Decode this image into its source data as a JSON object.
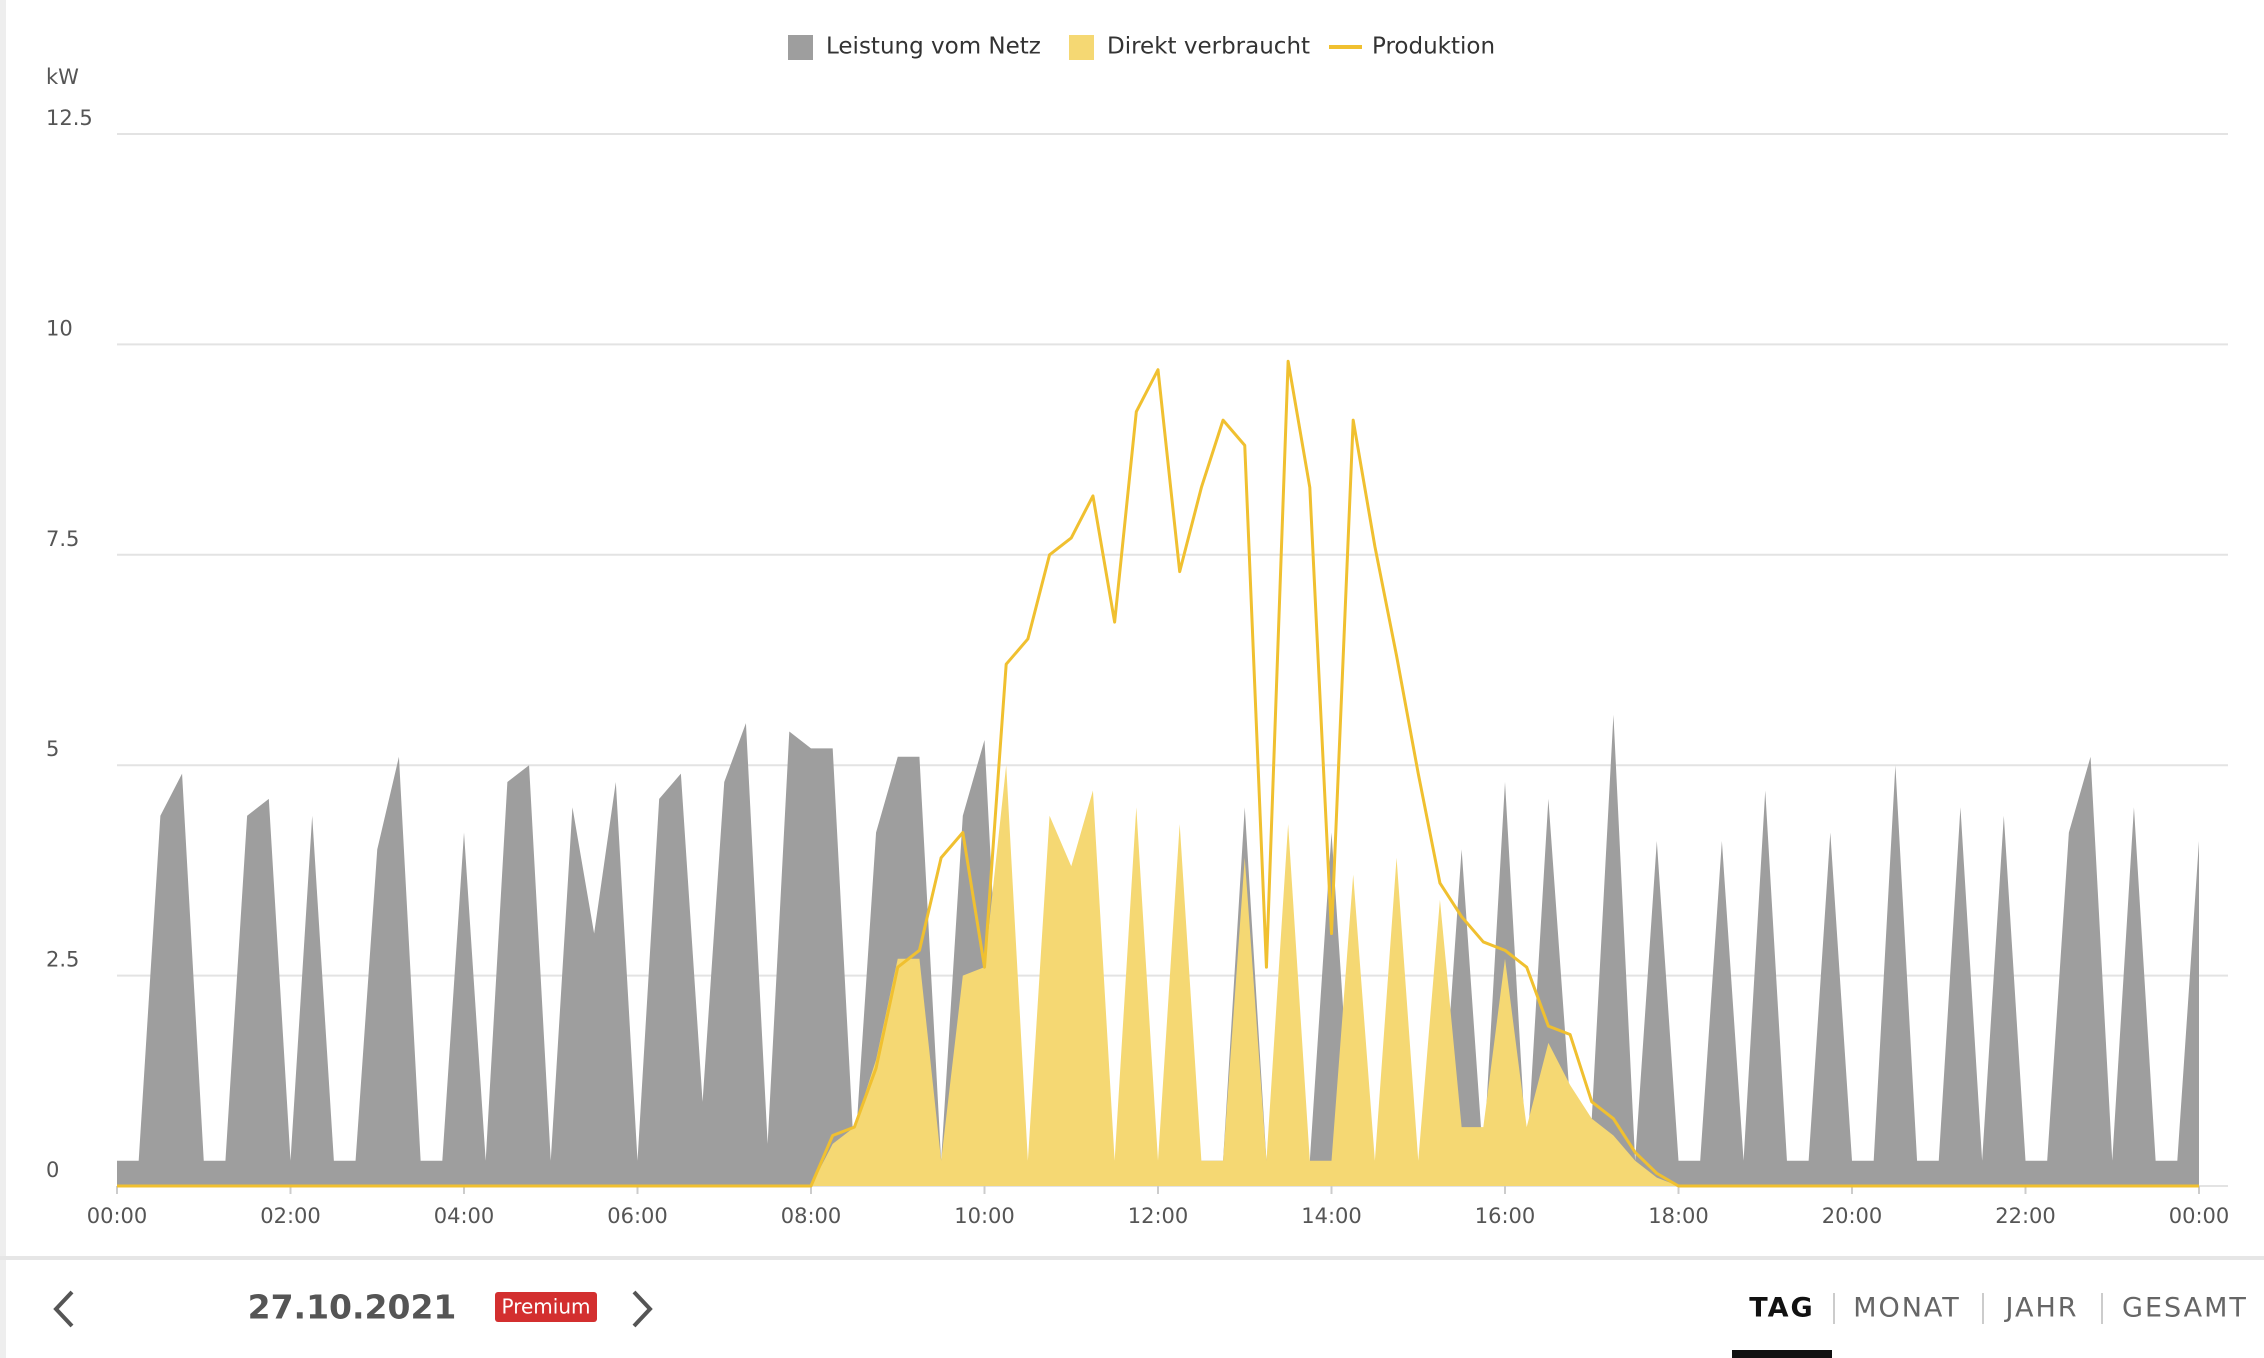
{
  "chart_data": {
    "type": "area",
    "unit_label": "kW",
    "x": [
      0,
      0.25,
      0.5,
      0.75,
      1,
      1.25,
      1.5,
      1.75,
      2,
      2.25,
      2.5,
      2.75,
      3,
      3.25,
      3.5,
      3.75,
      4,
      4.25,
      4.5,
      4.75,
      5,
      5.25,
      5.5,
      5.75,
      6,
      6.25,
      6.5,
      6.75,
      7,
      7.25,
      7.5,
      7.75,
      8,
      8.25,
      8.5,
      8.75,
      9,
      9.25,
      9.5,
      9.75,
      10,
      10.25,
      10.5,
      10.75,
      11,
      11.25,
      11.5,
      11.75,
      12,
      12.25,
      12.5,
      12.75,
      13,
      13.25,
      13.5,
      13.75,
      14,
      14.25,
      14.5,
      14.75,
      15,
      15.25,
      15.5,
      15.75,
      16,
      16.25,
      16.5,
      16.75,
      17,
      17.25,
      17.5,
      17.75,
      18,
      18.25,
      18.5,
      18.75,
      19,
      19.25,
      19.5,
      19.75,
      20,
      20.25,
      20.5,
      20.75,
      21,
      21.25,
      21.5,
      21.75,
      22,
      22.25,
      22.5,
      22.75,
      23,
      23.25,
      23.5,
      23.75,
      24
    ],
    "series": [
      {
        "name": "Leistung vom Netz",
        "kind": "area",
        "color": "#9e9e9e",
        "values": [
          0.3,
          0.3,
          4.4,
          4.9,
          0.3,
          0.3,
          4.4,
          4.6,
          0.3,
          4.4,
          0.3,
          0.3,
          4.0,
          5.1,
          0.3,
          0.3,
          4.2,
          0.3,
          4.8,
          5.0,
          0.3,
          4.5,
          3.0,
          4.8,
          0.3,
          4.6,
          4.9,
          1.0,
          4.8,
          5.5,
          0.5,
          5.4,
          5.2,
          5.2,
          0.3,
          4.2,
          5.1,
          5.1,
          0.3,
          4.4,
          5.3,
          0.3,
          0.3,
          0.3,
          0.3,
          0.3,
          0.3,
          0.3,
          0.3,
          0.3,
          0.3,
          0.3,
          4.5,
          0.3,
          0.3,
          0.3,
          4.2,
          0.3,
          0.3,
          0.3,
          0.3,
          0.3,
          4.0,
          0.3,
          4.8,
          0.3,
          4.6,
          1.0,
          0.8,
          5.6,
          0.3,
          4.1,
          0.3,
          0.3,
          4.1,
          0.3,
          4.7,
          0.3,
          0.3,
          4.2,
          0.3,
          0.3,
          5.0,
          0.3,
          0.3,
          4.5,
          0.3,
          4.4,
          0.3,
          0.3,
          4.2,
          5.1,
          0.3,
          4.5,
          0.3,
          0.3,
          4.1
        ]
      },
      {
        "name": "Direkt verbraucht",
        "kind": "area",
        "color": "#f5d873",
        "values": [
          0,
          0,
          0,
          0,
          0,
          0,
          0,
          0,
          0,
          0,
          0,
          0,
          0,
          0,
          0,
          0,
          0,
          0,
          0,
          0,
          0,
          0,
          0,
          0,
          0,
          0,
          0,
          0,
          0,
          0,
          0,
          0,
          0,
          0.5,
          0.7,
          1.5,
          2.7,
          2.7,
          0.3,
          2.5,
          2.6,
          5.0,
          0.3,
          4.4,
          3.8,
          4.7,
          0.3,
          4.5,
          0.3,
          4.3,
          0.3,
          0.3,
          3.9,
          0.3,
          4.3,
          0.3,
          0.3,
          3.7,
          0.3,
          3.9,
          0.3,
          3.4,
          0.7,
          0.7,
          2.7,
          0.7,
          1.7,
          1.2,
          0.8,
          0.6,
          0.3,
          0.1,
          0,
          0,
          0,
          0,
          0,
          0,
          0,
          0,
          0,
          0,
          0,
          0,
          0,
          0,
          0,
          0,
          0,
          0,
          0,
          0,
          0,
          0,
          0,
          0,
          0
        ]
      },
      {
        "name": "Produktion",
        "kind": "line",
        "color": "#f0c030",
        "values": [
          0,
          0,
          0,
          0,
          0,
          0,
          0,
          0,
          0,
          0,
          0,
          0,
          0,
          0,
          0,
          0,
          0,
          0,
          0,
          0,
          0,
          0,
          0,
          0,
          0,
          0,
          0,
          0,
          0,
          0,
          0,
          0,
          0,
          0.6,
          0.7,
          1.4,
          2.6,
          2.8,
          3.9,
          4.2,
          2.6,
          6.2,
          6.5,
          7.5,
          7.7,
          8.2,
          6.7,
          9.2,
          9.7,
          7.3,
          8.3,
          9.1,
          8.8,
          2.6,
          9.8,
          8.3,
          3.0,
          9.1,
          7.6,
          6.3,
          4.9,
          3.6,
          3.2,
          2.9,
          2.8,
          2.6,
          1.9,
          1.8,
          1.0,
          0.8,
          0.4,
          0.15,
          0,
          0,
          0,
          0,
          0,
          0,
          0,
          0,
          0,
          0,
          0,
          0,
          0,
          0,
          0,
          0,
          0,
          0,
          0,
          0,
          0,
          0,
          0,
          0,
          0
        ]
      }
    ],
    "xlim": [
      0,
      24
    ],
    "xticks": [
      {
        "value": 0,
        "label": "00:00"
      },
      {
        "value": 2,
        "label": "02:00"
      },
      {
        "value": 4,
        "label": "04:00"
      },
      {
        "value": 6,
        "label": "06:00"
      },
      {
        "value": 8,
        "label": "08:00"
      },
      {
        "value": 10,
        "label": "10:00"
      },
      {
        "value": 12,
        "label": "12:00"
      },
      {
        "value": 14,
        "label": "14:00"
      },
      {
        "value": 16,
        "label": "16:00"
      },
      {
        "value": 18,
        "label": "18:00"
      },
      {
        "value": 20,
        "label": "20:00"
      },
      {
        "value": 22,
        "label": "22:00"
      },
      {
        "value": 24,
        "label": "00:00"
      }
    ],
    "ylim": [
      0,
      12.5
    ],
    "yticks": [
      0,
      2.5,
      5,
      7.5,
      10,
      12.5
    ],
    "grid": true,
    "legend": "top"
  },
  "footer": {
    "date": "27.10.2021",
    "badge": "Premium",
    "tabs": [
      "TAG",
      "MONAT",
      "JAHR",
      "GESAMT"
    ],
    "active_tab": 0
  }
}
